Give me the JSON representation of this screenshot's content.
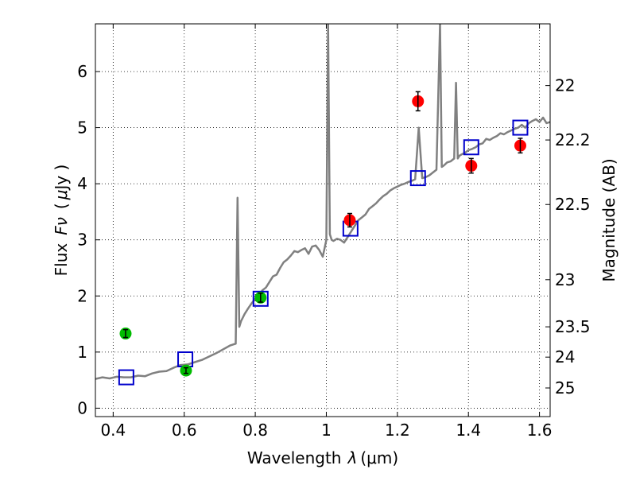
{
  "chart_data": {
    "type": "scatter",
    "xlabel_text": "Wavelength",
    "xlabel_symbol": "λ",
    "xlabel_unit": "(μm)",
    "ylabel_text": "Flux",
    "ylabel_symbol": "Fν",
    "ylabel_unit_open": "(",
    "ylabel_unit_symbol": "μ",
    "ylabel_unit_rest": "Jy )",
    "y2label": "Magnitude (AB)",
    "xlim": [
      0.35,
      1.63
    ],
    "ylim": [
      -0.15,
      6.85
    ],
    "grid": true,
    "x_ticks": [
      0.4,
      0.6,
      0.8,
      1.0,
      1.2,
      1.4,
      1.6
    ],
    "x_tick_labels": [
      "0.4",
      "0.6",
      "0.8",
      "1",
      "1.2",
      "1.4",
      "1.6"
    ],
    "y_ticks": [
      0,
      1,
      2,
      3,
      4,
      5,
      6
    ],
    "y_tick_labels": [
      "0",
      "1",
      "2",
      "3",
      "4",
      "5",
      "6"
    ],
    "y2_ticks": [
      {
        "label": "22",
        "flux": 5.75
      },
      {
        "label": "22.2",
        "flux": 4.78
      },
      {
        "label": "22.5",
        "flux": 3.63
      },
      {
        "label": "23",
        "flux": 2.29
      },
      {
        "label": "23.5",
        "flux": 1.45
      },
      {
        "label": "24",
        "flux": 0.91
      },
      {
        "label": "25",
        "flux": 0.36
      }
    ],
    "series": [
      {
        "kind": "line",
        "color": "#808080",
        "x": [
          0.35,
          0.37,
          0.39,
          0.41,
          0.43,
          0.45,
          0.47,
          0.49,
          0.51,
          0.53,
          0.55,
          0.57,
          0.59,
          0.61,
          0.63,
          0.65,
          0.67,
          0.69,
          0.71,
          0.73,
          0.745,
          0.75,
          0.755,
          0.76,
          0.77,
          0.78,
          0.79,
          0.8,
          0.81,
          0.82,
          0.83,
          0.84,
          0.85,
          0.86,
          0.87,
          0.88,
          0.89,
          0.9,
          0.91,
          0.92,
          0.93,
          0.94,
          0.95,
          0.96,
          0.97,
          0.98,
          0.99,
          1.0,
          1.005,
          1.01,
          1.015,
          1.02,
          1.03,
          1.04,
          1.05,
          1.06,
          1.07,
          1.08,
          1.09,
          1.1,
          1.11,
          1.12,
          1.13,
          1.14,
          1.15,
          1.16,
          1.17,
          1.18,
          1.19,
          1.2,
          1.21,
          1.22,
          1.23,
          1.24,
          1.25,
          1.26,
          1.27,
          1.28,
          1.29,
          1.3,
          1.31,
          1.32,
          1.325,
          1.33,
          1.335,
          1.34,
          1.35,
          1.36,
          1.365,
          1.37,
          1.375,
          1.38,
          1.39,
          1.4,
          1.41,
          1.42,
          1.43,
          1.44,
          1.45,
          1.46,
          1.47,
          1.48,
          1.49,
          1.5,
          1.51,
          1.52,
          1.53,
          1.54,
          1.55,
          1.56,
          1.57,
          1.58,
          1.59,
          1.6,
          1.61,
          1.62,
          1.63
        ],
        "y": [
          0.52,
          0.55,
          0.53,
          0.56,
          0.55,
          0.55,
          0.58,
          0.57,
          0.62,
          0.65,
          0.66,
          0.72,
          0.77,
          0.78,
          0.82,
          0.86,
          0.92,
          0.98,
          1.05,
          1.12,
          1.15,
          3.75,
          1.45,
          1.55,
          1.68,
          1.78,
          1.87,
          1.95,
          2.0,
          2.1,
          2.15,
          2.25,
          2.35,
          2.38,
          2.5,
          2.6,
          2.65,
          2.72,
          2.8,
          2.78,
          2.82,
          2.85,
          2.75,
          2.88,
          2.9,
          2.82,
          2.7,
          3.0,
          6.85,
          3.1,
          3.0,
          2.98,
          3.02,
          3.0,
          2.95,
          3.05,
          3.15,
          3.25,
          3.35,
          3.4,
          3.45,
          3.55,
          3.6,
          3.65,
          3.72,
          3.78,
          3.82,
          3.88,
          3.92,
          3.95,
          3.98,
          4.0,
          4.03,
          4.05,
          4.08,
          5.0,
          4.1,
          4.12,
          4.15,
          4.2,
          4.25,
          6.85,
          4.3,
          4.32,
          4.35,
          4.38,
          4.4,
          4.45,
          5.8,
          4.45,
          4.5,
          4.52,
          4.55,
          4.6,
          4.62,
          4.65,
          4.7,
          4.72,
          4.8,
          4.78,
          4.82,
          4.85,
          4.9,
          4.88,
          4.92,
          4.95,
          4.98,
          5.0,
          5.05,
          5.0,
          5.08,
          5.12,
          5.15,
          5.1,
          5.18,
          5.08,
          5.1
        ]
      },
      {
        "kind": "open-square",
        "color": "#0000cc",
        "x": [
          0.437,
          0.603,
          0.815,
          1.068,
          1.258,
          1.408,
          1.546
        ],
        "y": [
          0.55,
          0.87,
          1.95,
          3.2,
          4.1,
          4.65,
          5.0
        ]
      },
      {
        "kind": "filled-circle",
        "color": "#ff0000",
        "x": [
          1.066,
          1.258,
          1.408,
          1.546
        ],
        "y": [
          3.35,
          5.47,
          4.32,
          4.68
        ],
        "yerr": [
          0.12,
          0.17,
          0.13,
          0.13
        ]
      },
      {
        "kind": "filled-circle",
        "color": "#00bb00",
        "x": [
          0.435,
          0.605,
          0.815
        ],
        "y": [
          1.33,
          0.67,
          1.97
        ],
        "yerr": [
          0.07,
          0.05,
          0.08
        ]
      }
    ]
  }
}
